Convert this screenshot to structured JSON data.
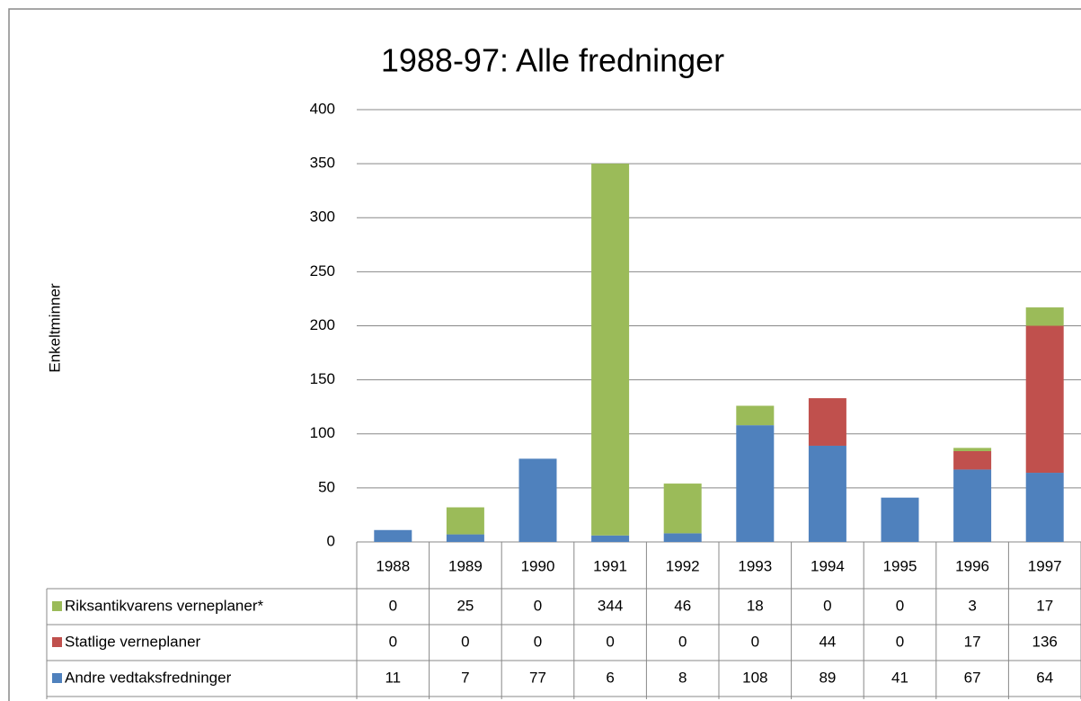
{
  "chart_data": {
    "type": "bar",
    "stacked": true,
    "title": "1988-97: Alle fredninger",
    "y_label": "Enkeltminner",
    "categories": [
      "1988",
      "1989",
      "1990",
      "1991",
      "1992",
      "1993",
      "1994",
      "1995",
      "1996",
      "1997"
    ],
    "series": [
      {
        "name": "Riksantikvarens verneplaner*",
        "color": "#9bbb59",
        "values": [
          0,
          25,
          0,
          344,
          46,
          18,
          0,
          0,
          3,
          17
        ]
      },
      {
        "name": "Statlige verneplaner",
        "color": "#c0504d",
        "values": [
          0,
          0,
          0,
          0,
          0,
          0,
          44,
          0,
          17,
          136
        ]
      },
      {
        "name": "Andre vedtaksfredninger",
        "color": "#4f81bd",
        "values": [
          11,
          7,
          77,
          6,
          8,
          108,
          89,
          41,
          67,
          64
        ]
      }
    ],
    "ylim": [
      0,
      400
    ],
    "yticks": [
      0,
      50,
      100,
      150,
      200,
      250,
      300,
      350,
      400
    ],
    "grid": true
  }
}
